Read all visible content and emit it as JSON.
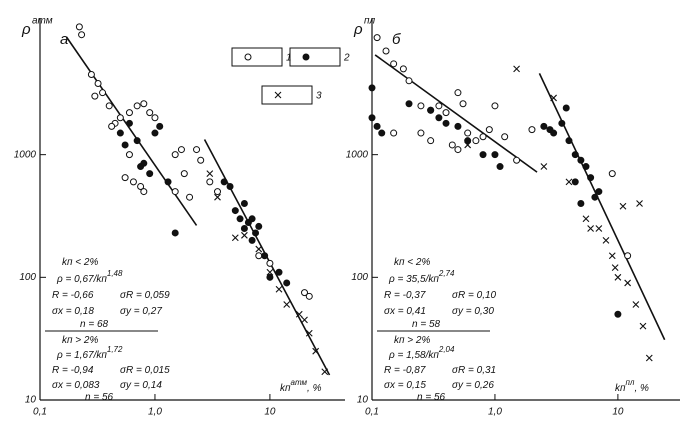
{
  "chart_data": [
    {
      "type": "scatter",
      "panel": "а",
      "log_x": true,
      "log_y": true,
      "y_label": {
        "text": "ρ",
        "sup": "атм"
      },
      "x_label": {
        "text": "kп",
        "sup": "атм",
        "suffix": ", %"
      },
      "xlim": [
        0.1,
        45
      ],
      "ylim": [
        10,
        13000
      ],
      "xticks": [
        {
          "value": 0.1,
          "label": "0,1"
        },
        {
          "value": 1,
          "label": "1,0"
        },
        {
          "value": 10,
          "label": "10"
        }
      ],
      "yticks": [
        10,
        100,
        1000
      ],
      "series": [
        {
          "name": "1",
          "marker": "open",
          "color": "#111",
          "x": [
            0.22,
            0.23,
            0.28,
            0.32,
            0.3,
            0.35,
            0.4,
            0.45,
            0.42,
            0.5,
            0.6,
            0.7,
            0.8,
            0.9,
            1.0,
            0.55,
            0.65,
            0.75,
            0.8,
            0.6,
            1.5,
            1.7,
            1.8,
            1.5,
            2,
            2.3,
            2.5,
            3,
            3.5,
            20,
            22,
            8,
            10
          ],
          "values": [
            11000,
            9500,
            4500,
            3800,
            3000,
            3200,
            2500,
            1800,
            1700,
            2000,
            2200,
            2500,
            2600,
            2200,
            2000,
            650,
            600,
            550,
            500,
            1000,
            1000,
            1100,
            700,
            500,
            450,
            1100,
            900,
            600,
            500,
            75,
            70,
            150,
            130
          ]
        },
        {
          "name": "2",
          "marker": "filled",
          "color": "#111",
          "x": [
            0.5,
            0.55,
            0.6,
            0.7,
            0.75,
            0.8,
            0.9,
            1.0,
            1.1,
            1.3,
            1.5,
            4,
            4.5,
            5,
            5.5,
            6,
            6.5,
            7,
            7.5,
            8,
            9,
            10,
            12,
            14,
            6,
            7
          ],
          "values": [
            1500,
            1200,
            1800,
            1300,
            800,
            850,
            700,
            1500,
            1700,
            600,
            230,
            600,
            550,
            350,
            300,
            250,
            280,
            200,
            230,
            260,
            150,
            100,
            110,
            90,
            400,
            300
          ]
        },
        {
          "name": "3",
          "marker": "cross",
          "color": "#111",
          "x": [
            3,
            3.5,
            6,
            8,
            10,
            12,
            14,
            18,
            20,
            22,
            25,
            30,
            5
          ],
          "values": [
            700,
            450,
            220,
            170,
            110,
            80,
            60,
            50,
            45,
            35,
            25,
            17,
            210
          ]
        }
      ],
      "fit_lines": [
        {
          "x": [
            0.17,
            2.3
          ],
          "y": [
            9100,
            265
          ]
        },
        {
          "x": [
            2.7,
            33
          ],
          "y": [
            1330,
            16
          ]
        }
      ],
      "annotations": [
        {
          "text": "kп < 2%"
        },
        {
          "text": "ρ = 0,67/kп",
          "sup": "1,48"
        },
        {
          "text": "R = -0,66"
        },
        {
          "text": "σR = 0,059"
        },
        {
          "text": "σx = 0,18"
        },
        {
          "text": "σy = 0,27"
        },
        {
          "text": "n = 68"
        },
        {
          "text": "kп > 2%"
        },
        {
          "text": "ρ = 1,67/kп",
          "sup": "1,72"
        },
        {
          "text": "R = -0,94"
        },
        {
          "text": "σR = 0,015"
        },
        {
          "text": "σx = 0,083"
        },
        {
          "text": "σy = 0,14"
        },
        {
          "text": "n = 56"
        }
      ]
    },
    {
      "type": "scatter",
      "panel": "б",
      "log_x": true,
      "log_y": true,
      "y_label": {
        "text": "ρ",
        "sup": "пл"
      },
      "x_label": {
        "text": "kп",
        "sup": "пл",
        "suffix": ", %"
      },
      "xlim": [
        0.1,
        32
      ],
      "ylim": [
        10,
        13000
      ],
      "xticks": [
        {
          "value": 0.1,
          "label": "0,1"
        },
        {
          "value": 1,
          "label": "1,0"
        },
        {
          "value": 10,
          "label": "10"
        }
      ],
      "yticks": [
        10,
        100,
        1000
      ],
      "series": [
        {
          "marker": "open",
          "color": "#111",
          "x": [
            0.11,
            0.13,
            0.15,
            0.18,
            0.2,
            0.25,
            0.3,
            0.35,
            0.4,
            0.5,
            0.55,
            0.6,
            0.7,
            0.8,
            0.9,
            1.0,
            0.45,
            0.25,
            0.3,
            0.15,
            1.2,
            1.5,
            2.0,
            0.5,
            9,
            12
          ],
          "values": [
            9000,
            7000,
            5500,
            5000,
            4000,
            2500,
            2300,
            2500,
            2200,
            3200,
            2600,
            1500,
            1300,
            1400,
            1600,
            2500,
            1200,
            1500,
            1300,
            1500,
            1400,
            900,
            1600,
            1100,
            700,
            150
          ]
        },
        {
          "marker": "filled",
          "color": "#111",
          "x": [
            0.1,
            0.1,
            0.12,
            0.11,
            0.2,
            0.3,
            0.35,
            0.4,
            0.5,
            0.6,
            0.8,
            1,
            1.1,
            2.5,
            2.8,
            3,
            3.5,
            3.8,
            4,
            4.5,
            5,
            5.5,
            6,
            6.5,
            7,
            4.5,
            5,
            10
          ],
          "values": [
            3500,
            2000,
            1500,
            1700,
            2600,
            2300,
            2000,
            1800,
            1700,
            1300,
            1000,
            1000,
            800,
            1700,
            1600,
            1500,
            1800,
            2400,
            1300,
            1000,
            900,
            800,
            650,
            450,
            500,
            600,
            400,
            50
          ]
        },
        {
          "marker": "cross",
          "color": "#111",
          "x": [
            0.6,
            1.5,
            3,
            2.5,
            4,
            5.5,
            6,
            7,
            8,
            9,
            9.5,
            10,
            12,
            14,
            16,
            18,
            11,
            15
          ],
          "values": [
            1200,
            5000,
            2900,
            800,
            600,
            300,
            250,
            250,
            200,
            150,
            120,
            100,
            90,
            60,
            40,
            22,
            380,
            400
          ]
        }
      ],
      "fit_lines": [
        {
          "x": [
            0.106,
            2.2
          ],
          "y": [
            6500,
            720
          ]
        },
        {
          "x": [
            2.3,
            24
          ],
          "y": [
            4600,
            31
          ]
        }
      ],
      "annotations": [
        {
          "text": "kп < 2%"
        },
        {
          "text": "ρ = 35,5/kп",
          "sup": "2,74"
        },
        {
          "text": "R = -0,37"
        },
        {
          "text": "σR = 0,10"
        },
        {
          "text": "σx = 0,41"
        },
        {
          "text": "σy = 0,30"
        },
        {
          "text": "n = 58"
        },
        {
          "text": "kп > 2%"
        },
        {
          "text": "ρ = 1,58/kп",
          "sup": "2,04"
        },
        {
          "text": "R = -0,87"
        },
        {
          "text": "σR = 0,31"
        },
        {
          "text": "σx = 0,15"
        },
        {
          "text": "σy = 0,26"
        },
        {
          "text": "n = 56"
        }
      ]
    }
  ]
}
